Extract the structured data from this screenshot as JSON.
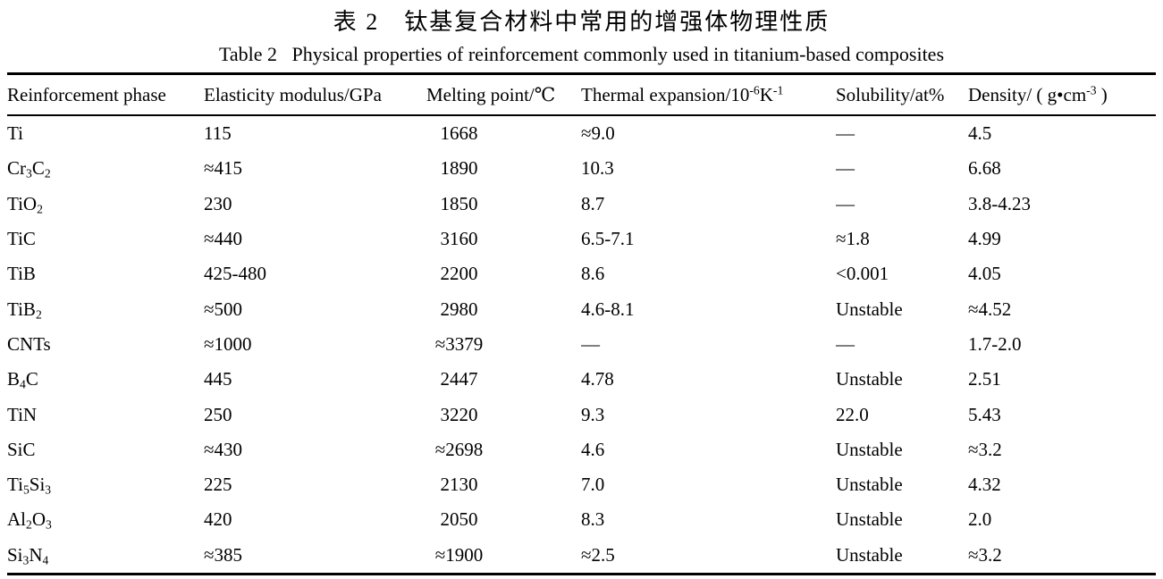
{
  "page": {
    "title_zh": "表 2　钛基复合材料中常用的增强体物理性质",
    "title_en": "Table 2   Physical properties of reinforcement commonly used in titanium-based composites"
  },
  "table": {
    "columns": [
      {
        "key": "phase",
        "label": "Reinforcement phase"
      },
      {
        "key": "elasticity",
        "label": "Elasticity modulus/GPa"
      },
      {
        "key": "melting",
        "label": "Melting point/℃"
      },
      {
        "key": "thermal",
        "label": "Thermal expansion/10^{-6}K^{-1}"
      },
      {
        "key": "solubility",
        "label": "Solubility/at%"
      },
      {
        "key": "density",
        "label": "Density/ ( g•cm^{-3} )"
      }
    ],
    "rows": [
      [
        "Ti",
        "115",
        "1668",
        "≈9.0",
        "—",
        "4.5"
      ],
      [
        "Cr_3C_2",
        "≈415",
        "1890",
        "10.3",
        "—",
        "6.68"
      ],
      [
        "TiO_2",
        "230",
        "1850",
        "8.7",
        "—",
        "3.8-4.23"
      ],
      [
        "TiC",
        "≈440",
        "3160",
        "6.5-7.1",
        "≈1.8",
        "4.99"
      ],
      [
        "TiB",
        "425-480",
        "2200",
        "8.6",
        "<0.001",
        "4.05"
      ],
      [
        "TiB_2",
        "≈500",
        "2980",
        "4.6-8.1",
        "Unstable",
        "≈4.52"
      ],
      [
        "CNTs",
        "≈1000",
        "≈3379",
        "—",
        "—",
        "1.7-2.0"
      ],
      [
        "B_4C",
        "445",
        "2447",
        "4.78",
        "Unstable",
        "2.51"
      ],
      [
        "TiN",
        "250",
        "3220",
        "9.3",
        "22.0",
        "5.43"
      ],
      [
        "SiC",
        "≈430",
        "≈2698",
        "4.6",
        "Unstable",
        "≈3.2"
      ],
      [
        "Ti_5Si_3",
        "225",
        "2130",
        "7.0",
        "Unstable",
        "4.32"
      ],
      [
        "Al_2O_3",
        "420",
        "2050",
        "8.3",
        "Unstable",
        "2.0"
      ],
      [
        "Si_3N_4",
        "≈385",
        "≈1900",
        "≈2.5",
        "Unstable",
        "≈3.2"
      ]
    ]
  }
}
